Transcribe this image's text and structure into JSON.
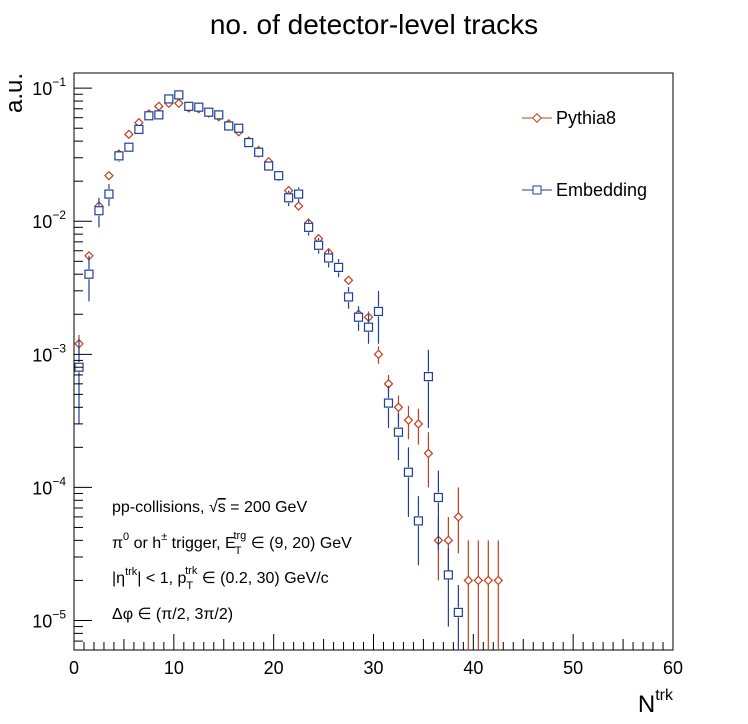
{
  "chart_data": {
    "type": "scatter",
    "title": "no. of detector-level tracks",
    "xlabel_main": "N",
    "xlabel_sup": "trk",
    "ylabel": "a.u.",
    "xlim": [
      0,
      60
    ],
    "ylim": [
      6e-06,
      0.13
    ],
    "yscale": "log",
    "grid": false,
    "legend_position": "top-right",
    "x_ticks": [
      "0",
      "10",
      "20",
      "30",
      "40",
      "50",
      "60"
    ],
    "y_ticks": [
      {
        "base": "10",
        "exp": "−5"
      },
      {
        "base": "10",
        "exp": "−4"
      },
      {
        "base": "10",
        "exp": "−3"
      },
      {
        "base": "10",
        "exp": "−2"
      },
      {
        "base": "10",
        "exp": "−1"
      }
    ],
    "annotations": {
      "line1_pre": "pp-collisions, ",
      "line1_sqrt": "√",
      "line1_s": "s",
      "line1_post": " = 200 GeV",
      "line2_pi": "π",
      "line2_pi_sup": "0",
      "line2_or": " or h",
      "line2_h_sup": "±",
      "line2_trig": " trigger, E",
      "line2_E_sub": "T",
      "line2_E_sup": "trg",
      "line2_range": " ∈ (9, 20) GeV",
      "line3_pre": "|η",
      "line3_eta_sup": "trk",
      "line3_mid": "| < 1, p",
      "line3_p_sub": "T",
      "line3_p_sup": "trk",
      "line3_range": " ∈ (0.2, 30) GeV/c",
      "line4": "Δφ ∈ (π/2, 3π/2)"
    },
    "series": [
      {
        "name": "Pythia8",
        "color": "#c0401a",
        "marker": "open-diamond",
        "x": [
          0.5,
          1.5,
          2.5,
          3.5,
          4.5,
          5.5,
          6.5,
          7.5,
          8.5,
          9.5,
          10.5,
          11.5,
          12.5,
          13.5,
          14.5,
          15.5,
          16.5,
          17.5,
          18.5,
          19.5,
          20.5,
          21.5,
          22.5,
          23.5,
          24.5,
          25.5,
          26.5,
          27.5,
          28.5,
          29.5,
          30.5,
          31.5,
          32.5,
          33.5,
          34.5,
          35.5,
          36.5,
          37.5,
          38.5,
          39.5,
          40.5,
          41.5,
          42.5
        ],
        "y": [
          0.0012,
          0.0055,
          0.013,
          0.022,
          0.032,
          0.045,
          0.055,
          0.064,
          0.073,
          0.077,
          0.077,
          0.071,
          0.07,
          0.065,
          0.061,
          0.054,
          0.047,
          0.04,
          0.034,
          0.028,
          0.022,
          0.017,
          0.013,
          0.0097,
          0.0074,
          0.0058,
          0.0045,
          0.0036,
          0.002,
          0.0019,
          0.001,
          0.0006,
          0.0004,
          0.00032,
          0.0003,
          0.00018,
          4e-05,
          4e-05,
          6e-05,
          2e-05,
          2e-05,
          2e-05,
          2e-05
        ],
        "err_lo": [
          0.0002,
          0.0004,
          0.001,
          0.001,
          0.001,
          0.001,
          0.001,
          0.001,
          0.001,
          0.001,
          0.001,
          0.001,
          0.001,
          0.001,
          0.001,
          0.001,
          0.001,
          0.001,
          0.001,
          0.0008,
          0.0006,
          0.0005,
          0.0004,
          0.0003,
          0.0003,
          0.0003,
          0.0002,
          0.0002,
          0.0002,
          0.0002,
          0.00015,
          0.0001,
          9e-05,
          9e-05,
          9e-05,
          8e-05,
          2e-05,
          2e-05,
          2.8e-05,
          1.4e-05,
          1.4e-05,
          1.4e-05,
          1.4e-05
        ],
        "err_hi": [
          0.0002,
          0.0004,
          0.001,
          0.001,
          0.001,
          0.001,
          0.001,
          0.001,
          0.001,
          0.001,
          0.001,
          0.001,
          0.001,
          0.001,
          0.001,
          0.001,
          0.001,
          0.001,
          0.001,
          0.0008,
          0.0006,
          0.0005,
          0.0004,
          0.0003,
          0.0003,
          0.0003,
          0.0002,
          0.0002,
          0.0002,
          0.0002,
          0.00015,
          0.0001,
          9e-05,
          9e-05,
          9e-05,
          8e-05,
          2e-05,
          2e-05,
          4e-05,
          2e-05,
          2e-05,
          2e-05,
          2e-05
        ]
      },
      {
        "name": "Embedding",
        "color": "#1f3f9a",
        "marker": "open-square",
        "x": [
          0.5,
          1.5,
          2.5,
          3.5,
          4.5,
          5.5,
          6.5,
          7.5,
          8.5,
          9.5,
          10.5,
          11.5,
          12.5,
          13.5,
          14.5,
          15.5,
          16.5,
          17.5,
          18.5,
          19.5,
          20.5,
          21.5,
          22.5,
          23.5,
          24.5,
          25.5,
          26.5,
          27.5,
          28.5,
          29.5,
          30.5,
          31.5,
          32.5,
          33.5,
          34.5,
          35.5,
          36.5,
          37.5,
          38.5
        ],
        "y": [
          0.0008,
          0.004,
          0.012,
          0.016,
          0.031,
          0.036,
          0.049,
          0.062,
          0.063,
          0.083,
          0.089,
          0.073,
          0.072,
          0.066,
          0.063,
          0.052,
          0.05,
          0.039,
          0.033,
          0.026,
          0.022,
          0.015,
          0.016,
          0.009,
          0.0066,
          0.0053,
          0.0045,
          0.0027,
          0.0019,
          0.0016,
          0.0021,
          0.00043,
          0.00026,
          0.00013,
          5.6e-05,
          0.00068,
          8.4e-05,
          2.2e-05,
          1.15e-05
        ],
        "err_lo": [
          0.0005,
          0.0015,
          0.003,
          0.003,
          0.003,
          0.003,
          0.004,
          0.004,
          0.004,
          0.005,
          0.005,
          0.004,
          0.004,
          0.004,
          0.004,
          0.003,
          0.003,
          0.003,
          0.003,
          0.002,
          0.002,
          0.002,
          0.002,
          0.0012,
          0.0009,
          0.0008,
          0.0007,
          0.0005,
          0.0004,
          0.0004,
          0.0009,
          0.00015,
          0.0001,
          7e-05,
          3e-05,
          0.0004,
          5e-05,
          1.3e-05,
          7e-06
        ],
        "err_hi": [
          0.0005,
          0.0015,
          0.003,
          0.003,
          0.003,
          0.003,
          0.004,
          0.004,
          0.004,
          0.005,
          0.005,
          0.004,
          0.004,
          0.004,
          0.004,
          0.003,
          0.003,
          0.003,
          0.003,
          0.002,
          0.002,
          0.002,
          0.002,
          0.0012,
          0.0009,
          0.0008,
          0.0007,
          0.0005,
          0.0004,
          0.0004,
          0.0009,
          0.00015,
          0.0001,
          7e-05,
          3e-05,
          0.0004,
          5e-05,
          1.3e-05,
          7e-06
        ]
      }
    ]
  }
}
